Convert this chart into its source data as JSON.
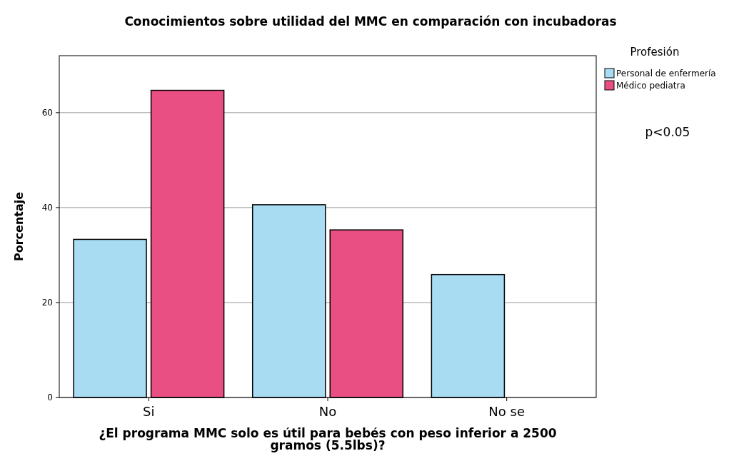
{
  "chart_data": {
    "type": "bar",
    "title": "Conocimientos sobre utilidad del MMC en comparación con incubadoras",
    "xlabel": "¿El programa MMC solo es útil para bebés con peso inferior a 2500 gramos (5.5lbs)?",
    "ylabel": "Porcentaje",
    "legend_title": "Profesión",
    "categories": [
      "Si",
      "No",
      "No se"
    ],
    "series": [
      {
        "name": "Personal de enfermería",
        "color": "#a8dcf2",
        "values": [
          33.3,
          40.6,
          25.9
        ]
      },
      {
        "name": "Médico pediatra",
        "color": "#e94f82",
        "values": [
          64.7,
          35.3,
          0
        ]
      }
    ],
    "ylim": [
      0,
      72
    ],
    "yticks": [
      0,
      20,
      40,
      60
    ],
    "grid": "y",
    "legend": "top right",
    "annotations": [
      "p<0.05"
    ]
  }
}
